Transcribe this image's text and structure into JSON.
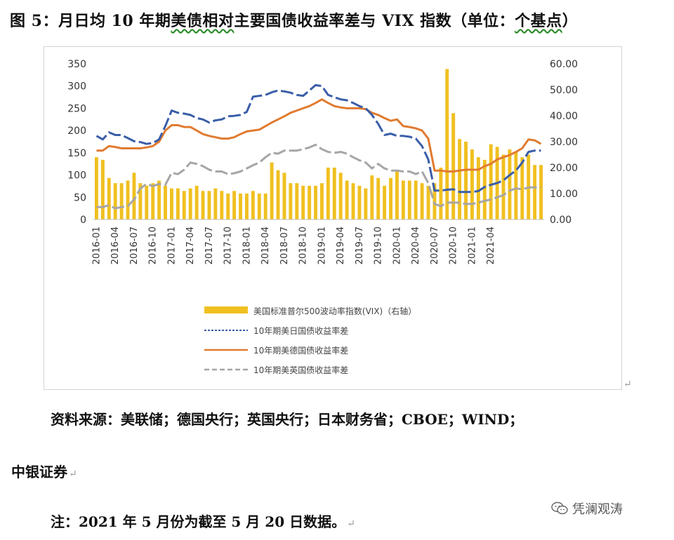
{
  "title": {
    "prefix": "图 5：月日均 10 年期",
    "wavy": "美债相对",
    "suffix": "主要国债收益率差与 VIX 指数（单位：",
    "wavy2": "个基点",
    "end": "）"
  },
  "source_line1": "资料来源：美联储；德国央行；英国央行；日本财务省；CBOE；WIND；",
  "source_line2": "中银证券",
  "note": "注：2021 年 5 月份为截至 5 月 20 日数据。",
  "paragraph_mark": "↵",
  "watermark": "凭澜观涛",
  "colors": {
    "vix": "#f0c020",
    "jp": "#3a5ea8",
    "de": "#e07b30",
    "uk": "#a6a6a6"
  },
  "chart_data": {
    "type": "bar+line",
    "title": "",
    "left_axis": {
      "min": 0,
      "max": 350,
      "ticks": [
        "0",
        "50",
        "100",
        "150",
        "200",
        "250",
        "300",
        "350"
      ]
    },
    "right_axis": {
      "min": 0,
      "max": 60,
      "ticks": [
        "0.00",
        "10.00",
        "20.00",
        "30.00",
        "40.00",
        "50.00",
        "60.00"
      ]
    },
    "x_tick_labels": [
      "2016-01",
      "2016-04",
      "2016-07",
      "2016-10",
      "2017-01",
      "2017-04",
      "2017-07",
      "2017-10",
      "2018-01",
      "2018-04",
      "2018-07",
      "2018-10",
      "2019-01",
      "2019-04",
      "2019-07",
      "2019-10",
      "2020-01",
      "2020-04",
      "2020-07",
      "2020-10",
      "2021-01",
      "2021-04"
    ],
    "legend": {
      "position": "bottom",
      "items": [
        {
          "name": "美国标准普尔500波动率指数(VIX)（右轴）",
          "style": "bar"
        },
        {
          "name": "10年期美日国债收益率差",
          "style": "dash-line"
        },
        {
          "name": "10年期美德国债收益率差",
          "style": "line"
        },
        {
          "name": "10年期美英国债收益率差",
          "style": "dash-line"
        }
      ]
    },
    "series": {
      "vix_right_axis": [
        24,
        23,
        16,
        14,
        14,
        15,
        18,
        14,
        13,
        14,
        15,
        13,
        12,
        12,
        11,
        12,
        13,
        11,
        11,
        12,
        11,
        10,
        11,
        10,
        10,
        11,
        10,
        10,
        22,
        19,
        18,
        14,
        14,
        13,
        13,
        13,
        14,
        20,
        20,
        18,
        15,
        14,
        13,
        12,
        17,
        16,
        13,
        16,
        19,
        15,
        15,
        15,
        14,
        13,
        14,
        20,
        58,
        41,
        31,
        30,
        27,
        24,
        23,
        29,
        28,
        25,
        27,
        26,
        24,
        25,
        21,
        21
      ],
      "us_jp_spread": [
        188,
        180,
        196,
        190,
        190,
        183,
        176,
        174,
        170,
        172,
        180,
        210,
        245,
        240,
        238,
        235,
        228,
        225,
        218,
        223,
        225,
        232,
        233,
        235,
        242,
        276,
        278,
        280,
        286,
        290,
        288,
        285,
        280,
        278,
        290,
        302,
        300,
        280,
        275,
        270,
        268,
        262,
        255,
        250,
        235,
        215,
        190,
        193,
        188,
        188,
        186,
        182,
        165,
        135,
        65,
        65,
        67,
        68,
        62,
        62,
        62,
        64,
        73,
        78,
        82,
        88,
        100,
        110,
        128,
        152,
        155,
        155
      ],
      "us_de_spread": [
        155,
        155,
        165,
        163,
        160,
        160,
        160,
        160,
        162,
        165,
        175,
        200,
        212,
        212,
        208,
        208,
        200,
        192,
        188,
        185,
        182,
        182,
        185,
        192,
        198,
        200,
        202,
        210,
        218,
        225,
        232,
        240,
        245,
        250,
        255,
        262,
        270,
        262,
        255,
        252,
        250,
        250,
        250,
        248,
        240,
        235,
        228,
        222,
        225,
        210,
        208,
        205,
        200,
        182,
        110,
        110,
        108,
        108,
        110,
        112,
        112,
        112,
        120,
        125,
        135,
        140,
        145,
        152,
        160,
        180,
        178,
        170
      ],
      "us_uk_spread": [
        28,
        28,
        32,
        25,
        28,
        30,
        45,
        70,
        80,
        75,
        80,
        78,
        105,
        102,
        112,
        128,
        125,
        120,
        112,
        108,
        108,
        102,
        104,
        108,
        115,
        122,
        128,
        140,
        150,
        148,
        155,
        155,
        155,
        158,
        162,
        168,
        158,
        152,
        150,
        152,
        148,
        140,
        133,
        128,
        115,
        125,
        115,
        110,
        110,
        108,
        108,
        102,
        108,
        82,
        35,
        30,
        38,
        38,
        38,
        35,
        35,
        38,
        42,
        45,
        50,
        55,
        65,
        70,
        68,
        72,
        72,
        72
      ]
    }
  }
}
